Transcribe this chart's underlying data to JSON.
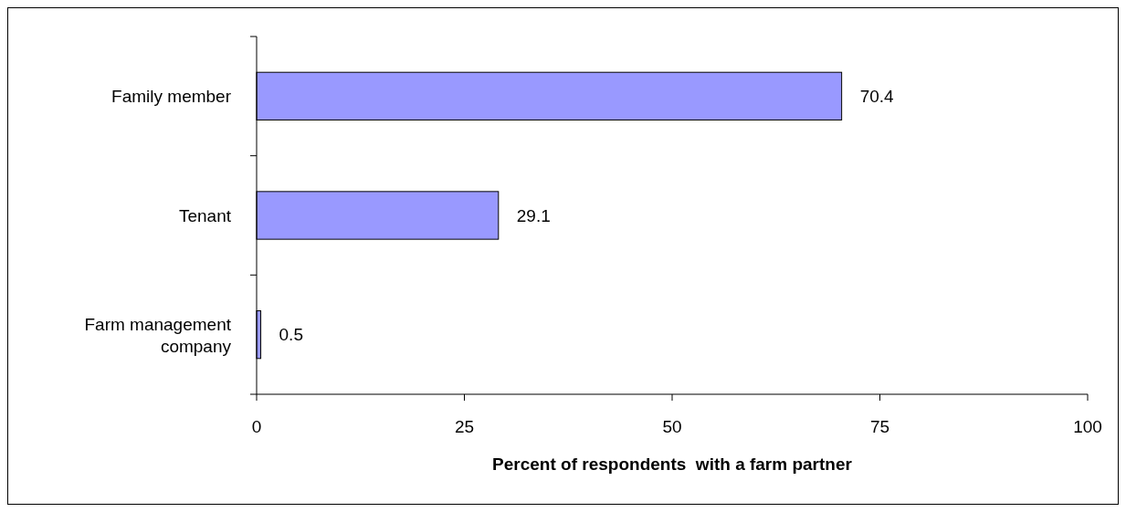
{
  "chart_data": {
    "type": "bar",
    "orientation": "horizontal",
    "categories": [
      "Family member",
      "Tenant",
      "Farm management company"
    ],
    "values": [
      70.4,
      29.1,
      0.5
    ],
    "color": "#9999ff",
    "xlim": [
      0,
      100
    ],
    "xticks": [
      0,
      25,
      50,
      75,
      100
    ],
    "xlabel": "Percent of respondents  with a farm partner",
    "data_labels": true
  }
}
